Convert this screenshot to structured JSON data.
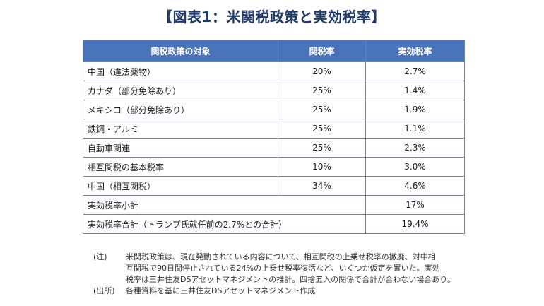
{
  "title": "【図表1：米関税政策と実効税率】",
  "table": {
    "headers": [
      "関税政策の対象",
      "関税率",
      "実効税率"
    ],
    "rows": [
      {
        "target": "中国（違法薬物）",
        "rate": "20%",
        "effective": "2.7%"
      },
      {
        "target": "カナダ（部分免除あり）",
        "rate": "25%",
        "effective": "1.4%"
      },
      {
        "target": "メキシコ（部分免除あり）",
        "rate": "25%",
        "effective": "1.9%"
      },
      {
        "target": "鉄鋼・アルミ",
        "rate": "25%",
        "effective": "1.1%"
      },
      {
        "target": "自動車関連",
        "rate": "25%",
        "effective": "2.3%"
      },
      {
        "target": "相互関税の基本税率",
        "rate": "10%",
        "effective": "3.0%"
      },
      {
        "target": "中国（相互関税）",
        "rate": "34%",
        "effective": "4.6%"
      }
    ],
    "subtotal": {
      "label": "実効税率小計",
      "effective": "17%"
    },
    "total": {
      "label": "実効税率合計（トランプ氏就任前の2.7%との合計）",
      "effective": "19.4%"
    }
  },
  "notes": {
    "note_label": "(注)",
    "note_text": "米関税政策は、現在発動されている内容について、相互関税の上乗せ税率の撤廃、対中相\n互関税で90日間停止されている24%の上乗せ税率復活など、いくつか仮定を置いた。実効\n税率は三井住友DSアセットマネジメントの推計。四捨五入の関係で合計が合わない場合あり。",
    "source_label": "(出所)",
    "source_text": "各種資料を基に三井住友DSアセットマネジメント作成"
  }
}
